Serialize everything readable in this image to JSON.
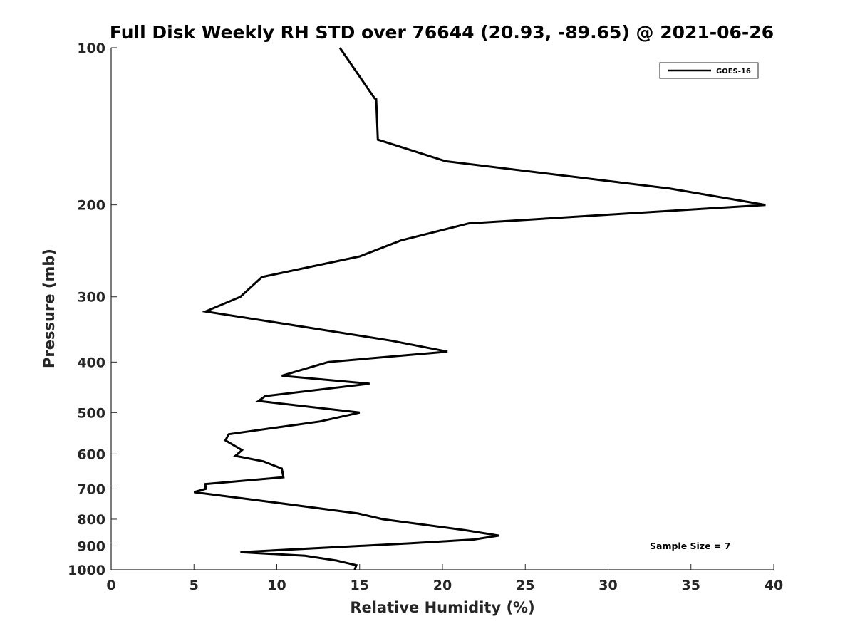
{
  "chart_data": {
    "type": "line",
    "title": "Full Disk Weekly RH STD over 76644 (20.93, -89.65) @ 2021-06-26",
    "xlabel": "Relative Humidity (%)",
    "ylabel": "Pressure (mb)",
    "xlim": [
      0,
      40
    ],
    "ylim": [
      100,
      1000
    ],
    "yscale": "log",
    "y_reversed": true,
    "grid": false,
    "legend_position": "top-right",
    "x_ticks": [
      0,
      5,
      10,
      15,
      20,
      25,
      30,
      35,
      40
    ],
    "y_ticks": [
      100,
      200,
      300,
      400,
      500,
      600,
      700,
      800,
      900,
      1000
    ],
    "series": [
      {
        "name": "GOES-16",
        "color": "#000000",
        "x": [
          13.8,
          15.9,
          16.0,
          16.1,
          20.2,
          33.7,
          39.5,
          21.6,
          17.5,
          15.0,
          9.1,
          7.8,
          5.7,
          12.5,
          16.9,
          20.3,
          13.1,
          10.3,
          15.6,
          9.3,
          8.9,
          15.0,
          12.6,
          7.1,
          6.9,
          7.9,
          7.5,
          9.2,
          10.3,
          10.4,
          5.7,
          5.7,
          5.0,
          9.4,
          14.9,
          16.4,
          21.4,
          23.4,
          21.9,
          18.0,
          7.8,
          11.7,
          13.6,
          14.8,
          14.7
        ],
        "y": [
          100,
          125,
          125.5,
          150,
          165,
          186,
          200,
          217,
          234,
          251,
          275,
          300,
          320,
          346,
          364,
          382,
          400,
          425,
          440,
          465,
          475,
          500,
          520,
          550,
          565,
          590,
          605,
          620,
          640,
          665,
          685,
          700,
          710,
          740,
          780,
          800,
          840,
          860,
          875,
          890,
          925,
          940,
          960,
          980,
          1000
        ]
      }
    ],
    "annotations": [
      "Sample Size = 7"
    ]
  }
}
